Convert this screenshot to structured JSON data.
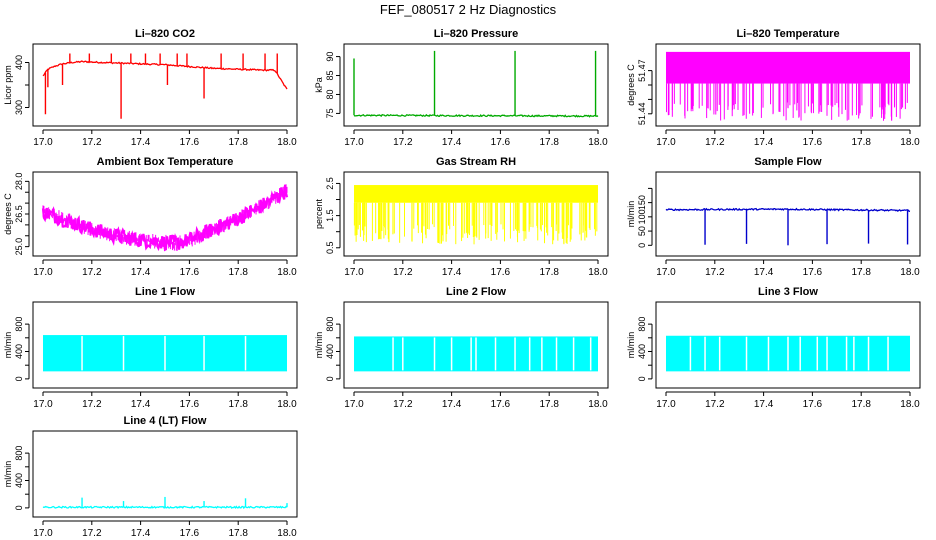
{
  "page": {
    "title": "FEF_080517  2 Hz Diagnostics"
  },
  "chart_data": [
    {
      "type": "line",
      "title": "Li–820 CO2",
      "ylabel": "Licor ppm",
      "color": "#ff0000",
      "xlim": [
        17.0,
        18.0
      ],
      "ylim": [
        270,
        430
      ],
      "xticks": [
        17.0,
        17.2,
        17.4,
        17.6,
        17.8,
        18.0
      ],
      "xticklabels": [
        "17.0",
        "17.2",
        "17.4",
        "17.6",
        "17.8",
        "18.0"
      ],
      "yticks": [
        300,
        350,
        400
      ],
      "yticklabels": [
        "300",
        "",
        "400"
      ],
      "series": [
        {
          "values": [
            [
              17.0,
              370
            ],
            [
              17.02,
              385
            ],
            [
              17.05,
              392
            ],
            [
              17.08,
              397
            ],
            [
              17.12,
              400
            ],
            [
              17.16,
              402
            ],
            [
              17.2,
              401
            ],
            [
              17.25,
              400
            ],
            [
              17.3,
              399
            ],
            [
              17.35,
              398
            ],
            [
              17.4,
              397
            ],
            [
              17.45,
              396
            ],
            [
              17.5,
              395
            ],
            [
              17.55,
              393
            ],
            [
              17.6,
              391
            ],
            [
              17.65,
              389
            ],
            [
              17.7,
              387
            ],
            [
              17.75,
              386
            ],
            [
              17.8,
              385
            ],
            [
              17.85,
              384
            ],
            [
              17.9,
              383
            ],
            [
              17.95,
              383
            ],
            [
              18.0,
              340
            ]
          ]
        }
      ],
      "spikes": [
        [
          17.01,
          285
        ],
        [
          17.02,
          345
        ],
        [
          17.08,
          350
        ],
        [
          17.11,
          420
        ],
        [
          17.19,
          420
        ],
        [
          17.28,
          420
        ],
        [
          17.32,
          275
        ],
        [
          17.36,
          420
        ],
        [
          17.42,
          420
        ],
        [
          17.48,
          420
        ],
        [
          17.51,
          350
        ],
        [
          17.55,
          420
        ],
        [
          17.59,
          420
        ],
        [
          17.66,
          320
        ],
        [
          17.73,
          420
        ],
        [
          17.82,
          420
        ],
        [
          17.91,
          420
        ],
        [
          17.96,
          420
        ]
      ]
    },
    {
      "type": "line",
      "title": "Li–820 Pressure",
      "ylabel": "kPa",
      "color": "#00aa00",
      "xlim": [
        17.0,
        18.0
      ],
      "ylim": [
        73,
        92
      ],
      "xticks": [
        17.0,
        17.2,
        17.4,
        17.6,
        17.8,
        18.0
      ],
      "xticklabels": [
        "17.0",
        "17.2",
        "17.4",
        "17.6",
        "17.8",
        "18.0"
      ],
      "yticks": [
        75,
        80,
        85,
        90
      ],
      "yticklabels": [
        "75",
        "80",
        "85",
        "90"
      ],
      "series": [
        {
          "values": [
            [
              17.0,
              74.5
            ],
            [
              17.5,
              74.4
            ],
            [
              18.0,
              74.3
            ]
          ]
        }
      ],
      "spikes": [
        [
          17.0,
          89.5
        ],
        [
          17.33,
          91.5
        ],
        [
          17.66,
          91.5
        ],
        [
          17.99,
          91.5
        ]
      ]
    },
    {
      "type": "line",
      "title": "Li–820 Temperature",
      "ylabel": "degrees C",
      "color": "#ff00ff",
      "xlim": [
        17.0,
        18.0
      ],
      "ylim": [
        51.435,
        51.485
      ],
      "xticks": [
        17.0,
        17.2,
        17.4,
        17.6,
        17.8,
        18.0
      ],
      "xticklabels": [
        "17.0",
        "17.2",
        "17.4",
        "17.6",
        "17.8",
        "18.0"
      ],
      "yticks": [
        51.44,
        51.45,
        51.46,
        51.47
      ],
      "yticklabels": [
        "51.44",
        "",
        "",
        "51.47"
      ],
      "band": {
        "low": 51.461,
        "high": 51.483
      },
      "drops": {
        "to": 51.435,
        "count": 120
      }
    },
    {
      "type": "line",
      "title": "Ambient Box Temperature",
      "ylabel": "degrees C",
      "color": "#ff00ff",
      "xlim": [
        17.0,
        18.0
      ],
      "ylim": [
        24.8,
        28.2
      ],
      "xticks": [
        17.0,
        17.2,
        17.4,
        17.6,
        17.8,
        18.0
      ],
      "xticklabels": [
        "17.0",
        "17.2",
        "17.4",
        "17.6",
        "17.8",
        "18.0"
      ],
      "yticks": [
        25.0,
        25.5,
        26.0,
        26.5,
        27.0,
        27.5,
        28.0
      ],
      "yticklabels": [
        "25.0",
        "",
        "",
        "26.5",
        "",
        "",
        "28.0"
      ],
      "series": [
        {
          "values": [
            [
              17.0,
              26.6
            ],
            [
              17.1,
              26.2
            ],
            [
              17.2,
              25.8
            ],
            [
              17.3,
              25.5
            ],
            [
              17.4,
              25.3
            ],
            [
              17.5,
              25.2
            ],
            [
              17.55,
              25.15
            ],
            [
              17.6,
              25.3
            ],
            [
              17.7,
              25.8
            ],
            [
              17.8,
              26.3
            ],
            [
              17.9,
              26.9
            ],
            [
              18.0,
              27.6
            ]
          ]
        }
      ],
      "noise": 0.35
    },
    {
      "type": "line",
      "title": "Gas Stream RH",
      "ylabel": "percent",
      "color": "#ffff00",
      "xlim": [
        17.0,
        18.0
      ],
      "ylim": [
        0.4,
        2.7
      ],
      "xticks": [
        17.0,
        17.2,
        17.4,
        17.6,
        17.8,
        18.0
      ],
      "xticklabels": [
        "17.0",
        "17.2",
        "17.4",
        "17.6",
        "17.8",
        "18.0"
      ],
      "yticks": [
        0.5,
        1.0,
        1.5,
        2.0,
        2.5
      ],
      "yticklabels": [
        "0.5",
        "",
        "1.5",
        "",
        "2.5"
      ],
      "band": {
        "low": 1.9,
        "high": 2.45
      },
      "drops": {
        "to": 0.6,
        "count": 160
      }
    },
    {
      "type": "line",
      "title": "Sample Flow",
      "ylabel": "ml/min",
      "color": "#0000cc",
      "xlim": [
        17.0,
        18.0
      ],
      "ylim": [
        -20,
        240
      ],
      "xticks": [
        17.0,
        17.2,
        17.4,
        17.6,
        17.8,
        18.0
      ],
      "xticklabels": [
        "17.0",
        "17.2",
        "17.4",
        "17.6",
        "17.8",
        "18.0"
      ],
      "yticks": [
        0,
        50,
        100,
        150,
        200
      ],
      "yticklabels": [
        "0",
        "50",
        "100",
        "150",
        ""
      ],
      "series": [
        {
          "values": [
            [
              17.0,
              125
            ],
            [
              17.5,
              127
            ],
            [
              18.0,
              122
            ]
          ]
        }
      ],
      "spikes": [
        [
          17.16,
          2
        ],
        [
          17.33,
          5
        ],
        [
          17.5,
          0
        ],
        [
          17.66,
          4
        ],
        [
          17.83,
          6
        ],
        [
          17.99,
          3
        ]
      ]
    },
    {
      "type": "line",
      "title": "Line 1 Flow",
      "ylabel": "ml/min",
      "color": "#00ffff",
      "xlim": [
        17.0,
        18.0
      ],
      "ylim": [
        -60,
        1050
      ],
      "xticks": [
        17.0,
        17.2,
        17.4,
        17.6,
        17.8,
        18.0
      ],
      "xticklabels": [
        "17.0",
        "17.2",
        "17.4",
        "17.6",
        "17.8",
        "18.0"
      ],
      "yticks": [
        0,
        200,
        400,
        600,
        800
      ],
      "yticklabels": [
        "0",
        "",
        "400",
        "",
        "800"
      ],
      "band": {
        "low": 110,
        "high": 640
      },
      "gaps": [
        17.16,
        17.33,
        17.5,
        17.66,
        17.83
      ]
    },
    {
      "type": "line",
      "title": "Line 2 Flow",
      "ylabel": "ml/min",
      "color": "#00ffff",
      "xlim": [
        17.0,
        18.0
      ],
      "ylim": [
        -60,
        1050
      ],
      "xticks": [
        17.0,
        17.2,
        17.4,
        17.6,
        17.8,
        18.0
      ],
      "xticklabels": [
        "17.0",
        "17.2",
        "17.4",
        "17.6",
        "17.8",
        "18.0"
      ],
      "yticks": [
        0,
        200,
        400,
        600,
        800
      ],
      "yticklabels": [
        "0",
        "",
        "400",
        "",
        "800"
      ],
      "band": {
        "low": 110,
        "high": 620
      },
      "gaps": [
        17.16,
        17.2,
        17.33,
        17.4,
        17.48,
        17.5,
        17.58,
        17.66,
        17.72,
        17.77,
        17.83,
        17.9,
        17.97
      ]
    },
    {
      "type": "line",
      "title": "Line 3 Flow",
      "ylabel": "ml/min",
      "color": "#00ffff",
      "xlim": [
        17.0,
        18.0
      ],
      "ylim": [
        -60,
        1050
      ],
      "xticks": [
        17.0,
        17.2,
        17.4,
        17.6,
        17.8,
        18.0
      ],
      "xticklabels": [
        "17.0",
        "17.2",
        "17.4",
        "17.6",
        "17.8",
        "18.0"
      ],
      "yticks": [
        0,
        200,
        400,
        600,
        800
      ],
      "yticklabels": [
        "0",
        "",
        "400",
        "",
        "800"
      ],
      "band": {
        "low": 110,
        "high": 630
      },
      "gaps": [
        17.1,
        17.16,
        17.22,
        17.33,
        17.42,
        17.5,
        17.55,
        17.62,
        17.66,
        17.74,
        17.77,
        17.83,
        17.91
      ]
    },
    {
      "type": "line",
      "title": "Line 4 (LT) Flow",
      "ylabel": "ml/min",
      "color": "#00ffff",
      "xlim": [
        17.0,
        18.0
      ],
      "ylim": [
        -60,
        1050
      ],
      "xticks": [
        17.0,
        17.2,
        17.4,
        17.6,
        17.8,
        18.0
      ],
      "xticklabels": [
        "17.0",
        "17.2",
        "17.4",
        "17.6",
        "17.8",
        "18.0"
      ],
      "yticks": [
        0,
        200,
        400,
        600,
        800
      ],
      "yticklabels": [
        "0",
        "",
        "400",
        "",
        "800"
      ],
      "series": [
        {
          "values": [
            [
              17.0,
              10
            ],
            [
              18.0,
              10
            ]
          ]
        }
      ],
      "spikes": [
        [
          17.16,
          150
        ],
        [
          17.33,
          100
        ],
        [
          17.5,
          160
        ],
        [
          17.66,
          100
        ],
        [
          17.83,
          140
        ],
        [
          18.0,
          70
        ]
      ]
    }
  ]
}
